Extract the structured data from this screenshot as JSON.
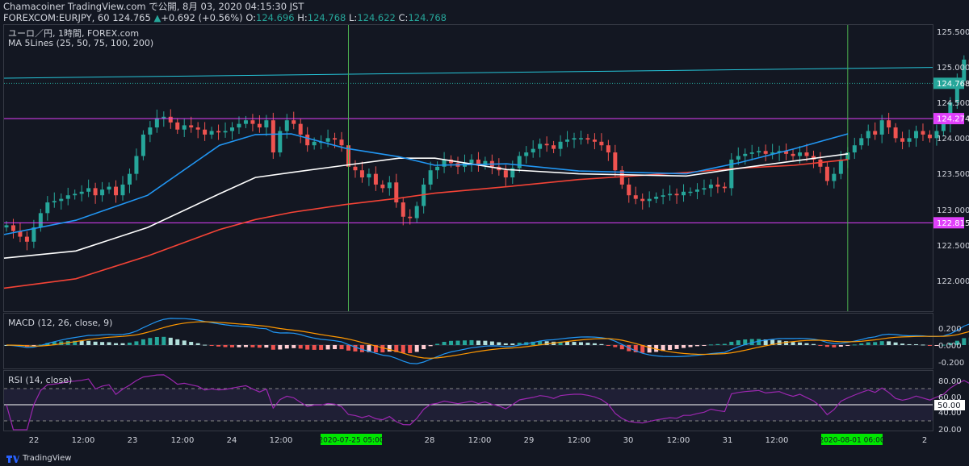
{
  "header": {
    "publish_line": "Chamacoiner TradingView.com で公開, 8月 03, 2020 04:15:30 JST",
    "symbol": "FOREXCOM:EURJPY, 60",
    "last": "124.765",
    "arrow": "▲",
    "change": "+0.692 (+0.56%)",
    "o_label": "O:",
    "o_value": "124.696",
    "h_label": "H:",
    "h_value": "124.768",
    "l_label": "L:",
    "l_value": "124.622",
    "c_label": "C:",
    "c_value": "124.768"
  },
  "legend": {
    "line1": "ユーロ／円, 1時間, FOREX.com",
    "line2": "MA 5Lines (25, 50, 75, 100, 200)"
  },
  "price_axis": [
    "125.500",
    "125.000",
    "124.500",
    "124.000",
    "123.500",
    "123.000",
    "122.500",
    "122.000"
  ],
  "price_tags": [
    {
      "label": "124.768",
      "price": 124.768,
      "color": "#26a69a",
      "text": "#ffffff"
    },
    {
      "label": "124.274",
      "price": 124.274,
      "color": "#e040fb",
      "text": "#ffffff"
    },
    {
      "label": "122.815",
      "price": 122.815,
      "color": "#e040fb",
      "text": "#ffffff"
    }
  ],
  "macd": {
    "title": "MACD (12, 26, close, 9)",
    "axis": [
      "0.200",
      "0.000",
      "-0.200"
    ]
  },
  "rsi": {
    "title": "RSI (14, close)",
    "axis": [
      "80.00",
      "60.00",
      "40.00",
      "20.00"
    ],
    "tag": "50.00"
  },
  "time_axis": [
    "22",
    "12:00",
    "23",
    "12:00",
    "24",
    "12:00",
    "28",
    "12:00",
    "29",
    "12:00",
    "30",
    "12:00",
    "31",
    "12:00",
    "2"
  ],
  "time_tags": [
    "2020-07-25  05:00",
    "2020-08-01  06:00"
  ],
  "watermark": "TradingView",
  "colors": {
    "up": "#26a69a",
    "down": "#ef5350",
    "bg": "#131722",
    "ma_blue": "#2196f3",
    "ma_white": "#ffffff",
    "ma_red": "#f44336",
    "trend": "#26c6da",
    "magenta": "#e040fb",
    "vline": "#4caf50"
  },
  "chart_data": {
    "type": "candlestick",
    "symbol": "FOREXCOM:EURJPY",
    "timeframe": "60",
    "ylim": [
      121.6,
      125.65
    ],
    "horizontal_levels": [
      124.274,
      122.815
    ],
    "trendline": {
      "start": [
        0,
        124.84
      ],
      "end": [
        123,
        124.99
      ]
    },
    "vertical_lines_at_bar": [
      50,
      123
    ],
    "candles_close": [
      122.78,
      122.7,
      122.62,
      122.55,
      122.75,
      122.95,
      123.1,
      123.12,
      123.15,
      123.2,
      123.22,
      123.25,
      123.3,
      123.2,
      123.28,
      123.32,
      123.2,
      123.35,
      123.5,
      123.75,
      124.05,
      124.15,
      124.28,
      124.3,
      124.22,
      124.12,
      124.18,
      124.15,
      124.12,
      124.05,
      124.1,
      124.08,
      124.1,
      124.15,
      124.2,
      124.25,
      124.2,
      124.15,
      124.25,
      123.8,
      124.1,
      124.25,
      124.2,
      124.05,
      123.9,
      123.95,
      123.95,
      124.0,
      123.98,
      123.9,
      123.6,
      123.55,
      123.45,
      123.5,
      123.35,
      123.3,
      123.38,
      123.1,
      122.9,
      122.88,
      123.05,
      123.35,
      123.55,
      123.6,
      123.7,
      123.65,
      123.6,
      123.65,
      123.7,
      123.62,
      123.68,
      123.6,
      123.55,
      123.45,
      123.58,
      123.75,
      123.8,
      123.85,
      123.92,
      123.9,
      123.85,
      123.95,
      123.98,
      124.0,
      124.0,
      123.98,
      123.95,
      123.9,
      123.8,
      123.55,
      123.35,
      123.2,
      123.15,
      123.12,
      123.15,
      123.18,
      123.2,
      123.22,
      123.2,
      123.25,
      123.25,
      123.28,
      123.3,
      123.35,
      123.32,
      123.3,
      123.7,
      123.75,
      123.78,
      123.8,
      123.82,
      123.78,
      123.8,
      123.82,
      123.78,
      123.75,
      123.8,
      123.75,
      123.7,
      123.6,
      123.4,
      123.5,
      123.7,
      123.8,
      123.9,
      124.0,
      124.1,
      124.05,
      124.25,
      124.15,
      124.0,
      123.95,
      124.0,
      124.1,
      124.05,
      124.0,
      124.1,
      124.2,
      124.5,
      124.8,
      125.1,
      125.0,
      124.85,
      124.7,
      124.768
    ],
    "ma_blue": [
      [
        0,
        122.65
      ],
      [
        20,
        122.85
      ],
      [
        40,
        123.2
      ],
      [
        60,
        123.9
      ],
      [
        70,
        124.05
      ],
      [
        80,
        124.06
      ],
      [
        95,
        123.86
      ],
      [
        110,
        123.74
      ],
      [
        120,
        123.62
      ],
      [
        140,
        123.64
      ],
      [
        160,
        123.54
      ],
      [
        190,
        123.5
      ],
      [
        205,
        123.66
      ],
      [
        220,
        123.85
      ],
      [
        235,
        124.06
      ]
    ],
    "ma_white": [
      [
        0,
        122.32
      ],
      [
        20,
        122.42
      ],
      [
        40,
        122.75
      ],
      [
        60,
        123.22
      ],
      [
        70,
        123.45
      ],
      [
        80,
        123.52
      ],
      [
        95,
        123.62
      ],
      [
        110,
        123.72
      ],
      [
        120,
        123.72
      ],
      [
        140,
        123.56
      ],
      [
        160,
        123.5
      ],
      [
        190,
        123.47
      ],
      [
        205,
        123.58
      ],
      [
        220,
        123.68
      ],
      [
        235,
        123.78
      ]
    ],
    "ma_red": [
      [
        0,
        121.9
      ],
      [
        20,
        122.03
      ],
      [
        40,
        122.35
      ],
      [
        60,
        122.72
      ],
      [
        70,
        122.86
      ],
      [
        80,
        122.96
      ],
      [
        95,
        123.07
      ],
      [
        110,
        123.16
      ],
      [
        120,
        123.23
      ],
      [
        140,
        123.32
      ],
      [
        160,
        123.42
      ],
      [
        190,
        123.52
      ],
      [
        205,
        123.58
      ],
      [
        220,
        123.62
      ],
      [
        235,
        123.7
      ]
    ]
  }
}
